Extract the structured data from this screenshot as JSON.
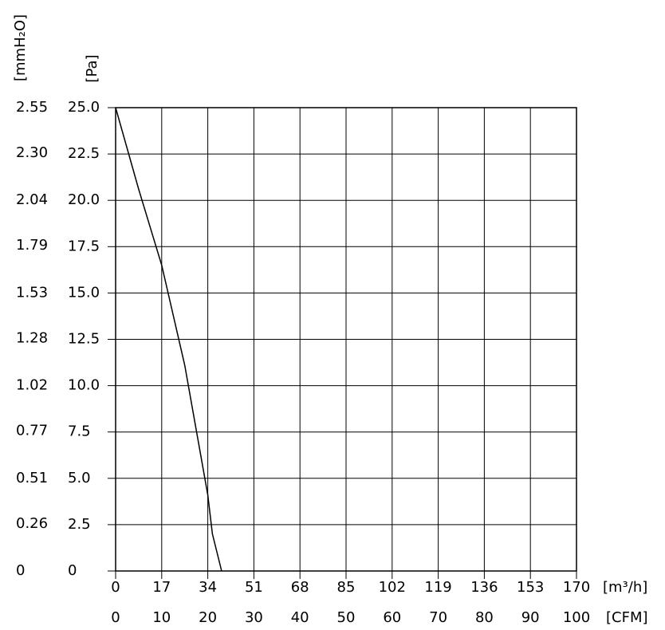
{
  "chart_data": {
    "type": "line",
    "ylabel": "[Pa]",
    "y2label": "[mmH₂O]",
    "xlabel": "[CFM]",
    "x2label": "[m³/h]",
    "x": [
      0,
      5,
      10,
      15,
      20,
      21,
      23
    ],
    "series": [
      {
        "color": "#000000",
        "values": [
          25,
          20.6,
          16.5,
          11.1,
          4.1,
          2.0,
          0
        ]
      }
    ],
    "xlim": [
      0,
      100
    ],
    "xticks": [
      0,
      10,
      20,
      30,
      40,
      50,
      60,
      70,
      80,
      90,
      100
    ],
    "x2lim": [
      0,
      170
    ],
    "x2ticks": [
      0,
      17,
      34,
      51,
      68,
      85,
      102,
      119,
      136,
      153,
      170
    ],
    "ylim": [
      0,
      25
    ],
    "yticks": [
      0,
      2.5,
      {
        "value": 5,
        "label": "5.0"
      },
      7.5,
      {
        "value": 10,
        "label": "10.0"
      },
      12.5,
      {
        "value": 15,
        "label": "15.0"
      },
      17.5,
      {
        "value": 20,
        "label": "20.0"
      },
      22.5,
      {
        "value": 25,
        "label": "25.0"
      }
    ],
    "y2lim": [
      0,
      2.55
    ],
    "y2ticks": [
      0,
      0.26,
      0.51,
      0.77,
      1.02,
      1.28,
      1.53,
      1.79,
      2.04,
      {
        "value": 2.3,
        "label": "2.30"
      },
      2.55
    ],
    "grid": true
  }
}
